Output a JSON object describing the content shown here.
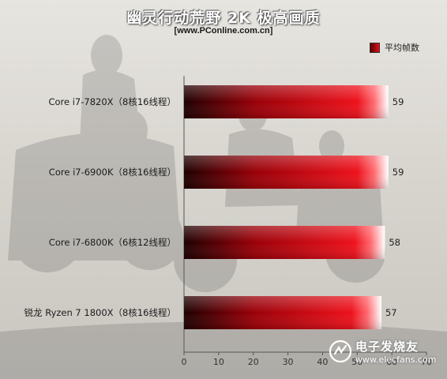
{
  "title": "幽灵行动荒野 2K 极高画质",
  "subtitle": "[www.PConline.com.cn]",
  "watermark": {
    "icon": "electronic-fans-logo-icon",
    "text_cn": "电子发烧友",
    "text_en": "www.elecfans.com"
  },
  "chart_data": {
    "type": "bar",
    "orientation": "horizontal",
    "categories": [
      "Core i7-7820X（8核16线程）",
      "Core i7-6900K（8核16线程）",
      "Core i7-6800K（6核12线程）",
      "锐龙 Ryzen 7 1800X（8核16线程）"
    ],
    "series": [
      {
        "name": "平均帧数",
        "values": [
          59,
          59,
          58,
          57
        ]
      }
    ],
    "xlim": [
      0,
      70
    ],
    "xticks": [
      0,
      10,
      20,
      30,
      40,
      50,
      60,
      70
    ],
    "legend_position": "top-right",
    "grid": false,
    "bar_color": "#e0101a"
  }
}
